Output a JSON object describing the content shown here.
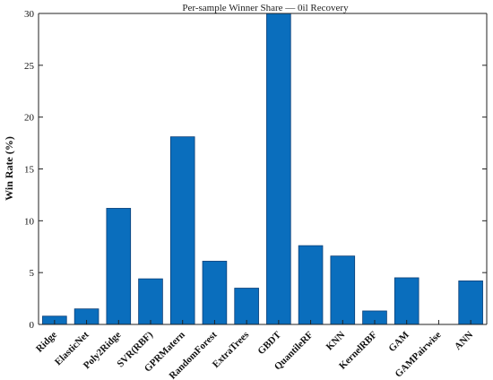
{
  "chart_data": {
    "type": "bar",
    "title": "Per-sample Winner Share — 0il Recovery",
    "xlabel": "",
    "ylabel": "Win Rate (%)",
    "ylim": [
      0,
      30
    ],
    "yticks": [
      0,
      5,
      10,
      15,
      20,
      25,
      30
    ],
    "categories": [
      "Ridge",
      "ElasticNet",
      "Poly2Ridge",
      "SVR(RBF)",
      "GPRMatern",
      "RandomForest",
      "ExtraTrees",
      "GBDT",
      "QuantileRF",
      "KNN",
      "KernelRBF",
      "GAM",
      "GAMPairwise",
      "ANN"
    ],
    "values": [
      0.8,
      1.5,
      11.2,
      4.4,
      18.1,
      6.1,
      3.5,
      30.0,
      7.6,
      6.6,
      1.3,
      4.5,
      0.0,
      4.2
    ],
    "bar_color": "#0a6ebd",
    "grid": false,
    "legend": "none"
  }
}
